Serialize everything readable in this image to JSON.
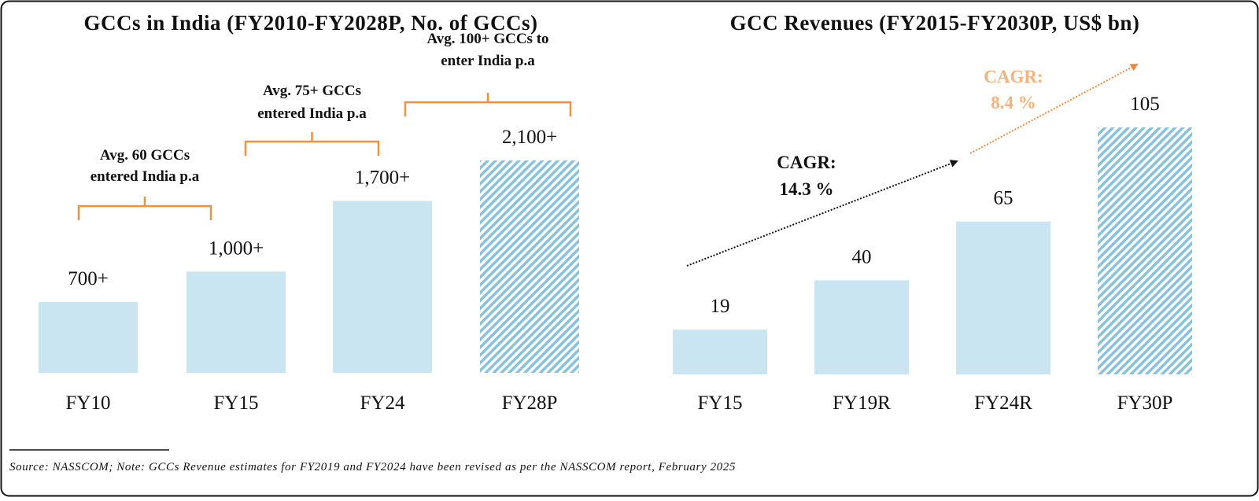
{
  "colors": {
    "bar": "#c9e5f1",
    "hatch": "#86c2dc",
    "bracket": "#f0913f",
    "cagr_future": "#f5b27c",
    "arrow_future": "#f08a3e",
    "text": "#111111"
  },
  "chart_data": [
    {
      "type": "bar",
      "title": "GCCs in India (FY2010-FY2028P, No. of GCCs)",
      "categories": [
        "FY10",
        "FY15",
        "FY24",
        "FY28P"
      ],
      "values": [
        700,
        1000,
        1700,
        2100
      ],
      "labels": [
        "700+",
        "1,000+",
        "1,700+",
        "2,100+"
      ],
      "projected": [
        false,
        false,
        false,
        true
      ],
      "annotations": [
        {
          "lines": [
            "Avg. 60 GCCs",
            "entered India p.a"
          ],
          "span": [
            "FY10",
            "FY15"
          ]
        },
        {
          "lines": [
            "Avg. 75+ GCCs",
            "entered India p.a"
          ],
          "span": [
            "FY15",
            "FY24"
          ]
        },
        {
          "lines": [
            "Avg. 100+ GCCs to",
            "enter India p.a"
          ],
          "span": [
            "FY24",
            "FY28P"
          ]
        }
      ],
      "grid": false
    },
    {
      "type": "bar",
      "title": "GCC Revenues (FY2015-FY2030P, US$ bn)",
      "categories": [
        "FY15",
        "FY19R",
        "FY24R",
        "FY30P"
      ],
      "values": [
        19,
        40,
        65,
        105
      ],
      "labels": [
        "19",
        "40",
        "65",
        "105"
      ],
      "projected": [
        false,
        false,
        false,
        true
      ],
      "cagr": [
        {
          "lines": [
            "CAGR:",
            "14.3 %"
          ],
          "span": [
            "FY15",
            "FY24R"
          ]
        },
        {
          "lines": [
            "CAGR:",
            "8.4 %"
          ],
          "span": [
            "FY24R",
            "FY30P"
          ]
        }
      ],
      "grid": false
    }
  ],
  "footnote": "Source: NASSCOM; Note: GCCs Revenue estimates for FY2019 and FY2024 have been revised as per the NASSCOM report, February 2025"
}
